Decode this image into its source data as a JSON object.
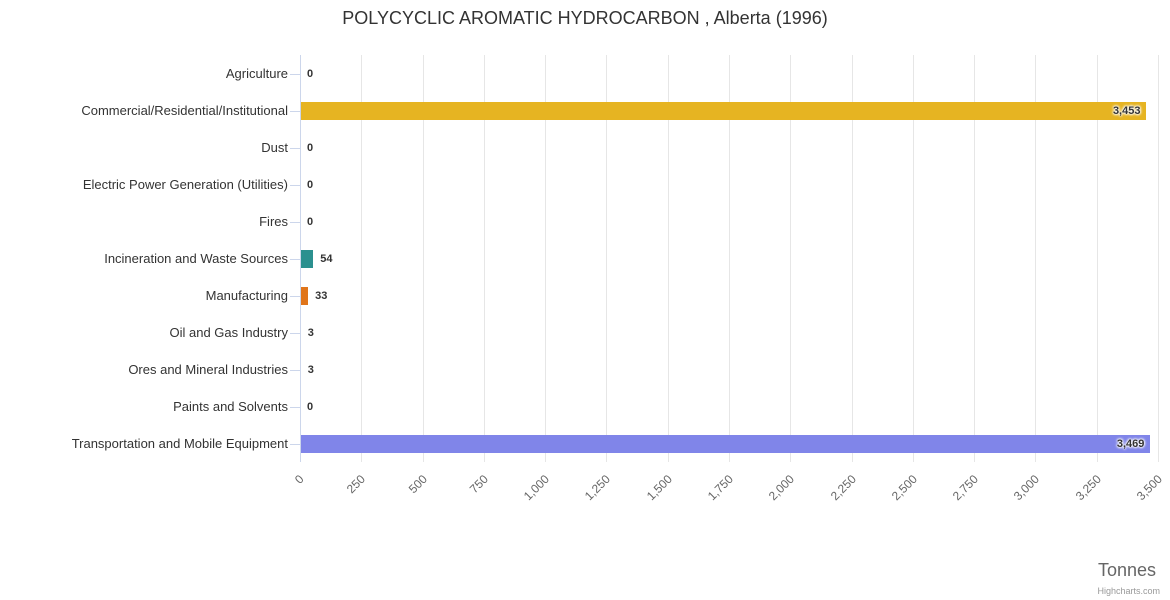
{
  "credits": "Highcharts.com",
  "chart_data": {
    "type": "bar",
    "orientation": "horizontal",
    "title": "POLYCYCLIC AROMATIC HYDROCARBON , Alberta (1996)",
    "categories": [
      "Agriculture",
      "Commercial/Residential/Institutional",
      "Dust",
      "Electric Power Generation (Utilities)",
      "Fires",
      "Incineration and Waste Sources",
      "Manufacturing",
      "Oil and Gas Industry",
      "Ores and Mineral Industries",
      "Paints and Solvents",
      "Transportation and Mobile Equipment"
    ],
    "values": [
      0,
      3453,
      0,
      0,
      0,
      54,
      33,
      3,
      3,
      0,
      3469
    ],
    "value_labels": [
      "0",
      "3,453",
      "0",
      "0",
      "0",
      "54",
      "33",
      "3",
      "3",
      "0",
      "3,469"
    ],
    "colors": [
      null,
      "#e6b422",
      null,
      null,
      null,
      "#2b908f",
      "#e0751a",
      null,
      null,
      null,
      "#8085e9"
    ],
    "xlabel": "Tonnes",
    "ylabel": "",
    "xlim": [
      0,
      3500
    ],
    "tick_interval": 250,
    "x_tick_labels": [
      "0",
      "250",
      "500",
      "750",
      "1,000",
      "1,250",
      "1,500",
      "1,750",
      "2,000",
      "2,250",
      "2,500",
      "2,750",
      "3,000",
      "3,250",
      "3,500"
    ],
    "grid": true,
    "legend": false
  }
}
